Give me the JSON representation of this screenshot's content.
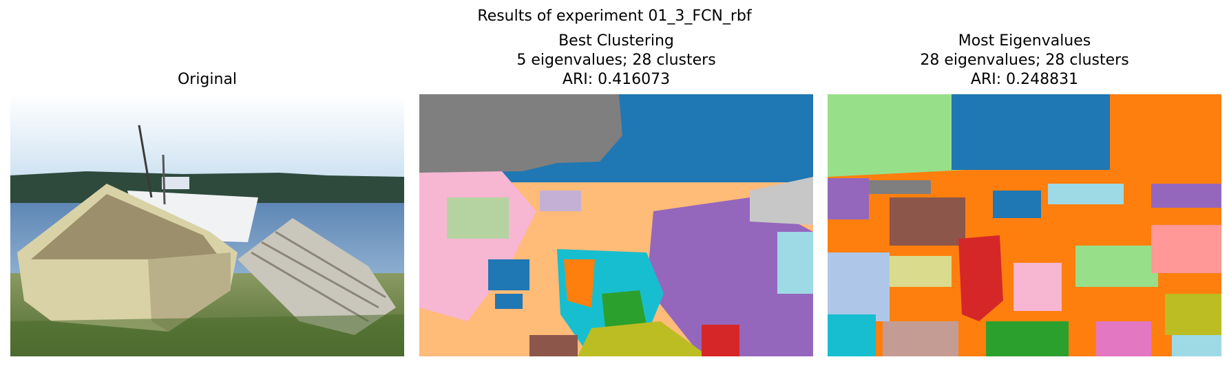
{
  "figure": {
    "suptitle": "Results of experiment 01_3_FCN_rbf"
  },
  "panels": [
    {
      "title_lines": [
        "Original"
      ]
    },
    {
      "title_lines": [
        "Best Clustering",
        "5 eigenvalues; 28 clusters",
        "ARI: 0.416073"
      ]
    },
    {
      "title_lines": [
        "Most Eigenvalues",
        "28 eigenvalues; 28 clusters",
        "ARI: 0.248831"
      ]
    }
  ],
  "colors": {
    "tab_blue": "#1f77b4",
    "tab_orange": "#ff7f0e",
    "tab_green": "#2ca02c",
    "tab_red": "#d62728",
    "tab_purple": "#9467bd",
    "tab_brown": "#8c564b",
    "tab_pink": "#e377c2",
    "tab_gray": "#7f7f7f",
    "tab_olive": "#bcbd22",
    "tab_cyan": "#17becf",
    "light_orange": "#ffbb78",
    "light_green": "#98df8a",
    "light_blue": "#aec7e8",
    "light_pink": "#f7b6d2",
    "light_purple": "#c5b0d5",
    "light_brown": "#c49c94",
    "light_gray": "#c7c7c7",
    "light_olive": "#dbdb8d",
    "light_cyan": "#9edae5"
  }
}
